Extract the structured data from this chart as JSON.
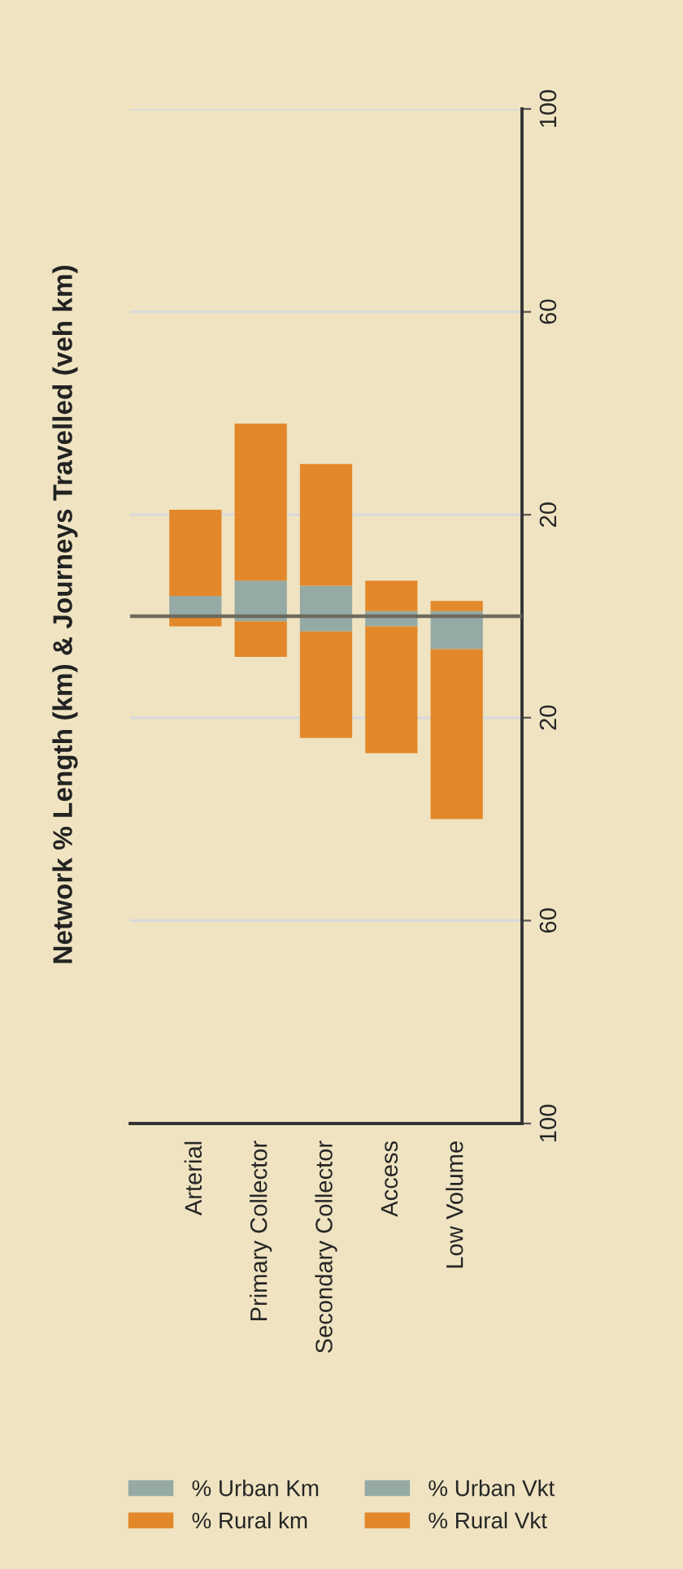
{
  "chart_data": {
    "type": "bar",
    "title": "Network % Length (km) & Journeys Travelled (veh km)",
    "categories": [
      "Arterial",
      "Primary Collector",
      "Secondary Collector",
      "Access",
      "Low Volume"
    ],
    "series": [
      {
        "name": "% Urban Km",
        "color": "#95aaa4",
        "values": [
          0,
          -1,
          -3,
          -2,
          -6.5
        ]
      },
      {
        "name": "% Rural km",
        "color": "#e3882a",
        "values": [
          -2,
          -7,
          -21,
          -25,
          -33.5
        ]
      },
      {
        "name": "% Urban Vkt",
        "color": "#95aaa4",
        "values": [
          4,
          7,
          6,
          1,
          1
        ]
      },
      {
        "name": "% Rural Vkt",
        "color": "#e3882a",
        "values": [
          17,
          31,
          24,
          6,
          2
        ]
      }
    ],
    "stacked": true,
    "ylim": [
      -100,
      100
    ],
    "yticks": [
      {
        "value": -100,
        "label": "100"
      },
      {
        "value": -60,
        "label": "60"
      },
      {
        "value": -20,
        "label": "20"
      },
      20,
      60,
      100
    ],
    "ref_lines": [
      {
        "axis": "y",
        "value": 0,
        "color": "#6e6a5e"
      }
    ],
    "grid": "y",
    "legend": "bottom"
  }
}
